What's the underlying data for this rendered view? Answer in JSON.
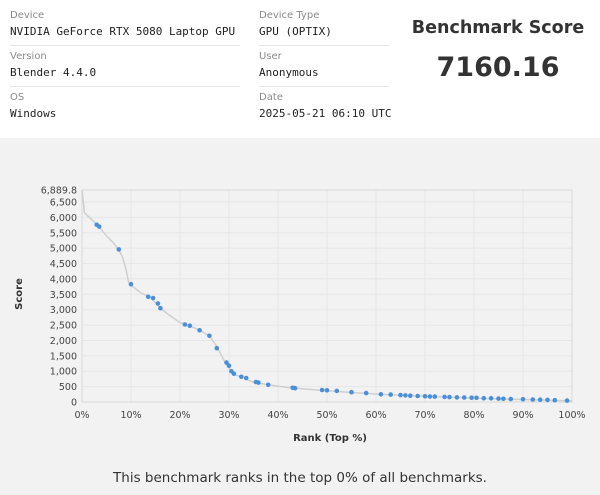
{
  "info": {
    "device_label": "Device",
    "device_value": "NVIDIA GeForce RTX 5080 Laptop GPU",
    "device_type_label": "Device Type",
    "device_type_value": "GPU (OPTIX)",
    "version_label": "Version",
    "version_value": "Blender 4.4.0",
    "user_label": "User",
    "user_value": "Anonymous",
    "os_label": "OS",
    "os_value": "Windows",
    "date_label": "Date",
    "date_value": "2025-05-21 06:10 UTC"
  },
  "score": {
    "title": "Benchmark Score",
    "value": "7160.16"
  },
  "caption": "This benchmark ranks in the top 0% of all benchmarks.",
  "colors": {
    "point": "#4a90d9",
    "line": "#cfcfcf",
    "grid": "#e6e6e6"
  },
  "chart_data": {
    "type": "scatter",
    "xlabel": "Rank (Top %)",
    "ylabel": "Score",
    "xlim": [
      0,
      100
    ],
    "ylim": [
      0,
      6889.8
    ],
    "x_ticks": [
      "0%",
      "10%",
      "20%",
      "30%",
      "40%",
      "50%",
      "60%",
      "70%",
      "80%",
      "90%",
      "100%"
    ],
    "y_ticks": [
      "0",
      "500",
      "1,000",
      "1,500",
      "2,000",
      "2,500",
      "3,000",
      "3,500",
      "4,000",
      "4,500",
      "5,000",
      "5,500",
      "6,000",
      "6,500",
      "6,889.8"
    ],
    "grid": true,
    "curve": [
      [
        0,
        6889.8
      ],
      [
        0.5,
        6150
      ],
      [
        1.5,
        6000
      ],
      [
        3,
        5780
      ],
      [
        5,
        5400
      ],
      [
        6.5,
        5150
      ],
      [
        7.5,
        4950
      ],
      [
        8.3,
        4700
      ],
      [
        9,
        4300
      ],
      [
        9.5,
        3900
      ],
      [
        10,
        3800
      ],
      [
        12,
        3550
      ],
      [
        14,
        3400
      ],
      [
        16,
        3050
      ],
      [
        18,
        2800
      ],
      [
        20,
        2580
      ],
      [
        22,
        2480
      ],
      [
        24,
        2330
      ],
      [
        26,
        2150
      ],
      [
        27.5,
        1800
      ],
      [
        29,
        1350
      ],
      [
        30,
        1100
      ],
      [
        31,
        900
      ],
      [
        33,
        780
      ],
      [
        35,
        640
      ],
      [
        38,
        560
      ],
      [
        42,
        470
      ],
      [
        48,
        390
      ],
      [
        55,
        310
      ],
      [
        62,
        240
      ],
      [
        70,
        185
      ],
      [
        78,
        140
      ],
      [
        85,
        100
      ],
      [
        92,
        70
      ],
      [
        97,
        50
      ],
      [
        100,
        35
      ]
    ],
    "points": [
      [
        3,
        5760
      ],
      [
        3.5,
        5700
      ],
      [
        7.5,
        4960
      ],
      [
        10,
        3830
      ],
      [
        13.5,
        3420
      ],
      [
        14.5,
        3380
      ],
      [
        15.5,
        3200
      ],
      [
        16,
        3050
      ],
      [
        21,
        2520
      ],
      [
        22,
        2480
      ],
      [
        24,
        2330
      ],
      [
        26,
        2150
      ],
      [
        27.5,
        1750
      ],
      [
        29.5,
        1280
      ],
      [
        30,
        1180
      ],
      [
        30.5,
        1000
      ],
      [
        31,
        920
      ],
      [
        32.5,
        820
      ],
      [
        33.5,
        780
      ],
      [
        35.5,
        650
      ],
      [
        36,
        630
      ],
      [
        38,
        560
      ],
      [
        43,
        460
      ],
      [
        43.5,
        450
      ],
      [
        49,
        390
      ],
      [
        50,
        380
      ],
      [
        52,
        360
      ],
      [
        55,
        320
      ],
      [
        58,
        290
      ],
      [
        61,
        250
      ],
      [
        63,
        240
      ],
      [
        65,
        225
      ],
      [
        66,
        215
      ],
      [
        67,
        205
      ],
      [
        68.5,
        195
      ],
      [
        70,
        185
      ],
      [
        71,
        180
      ],
      [
        72,
        175
      ],
      [
        74,
        165
      ],
      [
        75,
        160
      ],
      [
        76.5,
        150
      ],
      [
        78,
        145
      ],
      [
        79.5,
        140
      ],
      [
        80.5,
        135
      ],
      [
        82,
        125
      ],
      [
        83.5,
        120
      ],
      [
        85,
        110
      ],
      [
        86,
        105
      ],
      [
        87.5,
        98
      ],
      [
        90,
        90
      ],
      [
        92,
        80
      ],
      [
        93.5,
        75
      ],
      [
        95,
        68
      ],
      [
        96.5,
        60
      ],
      [
        99,
        45
      ]
    ]
  }
}
